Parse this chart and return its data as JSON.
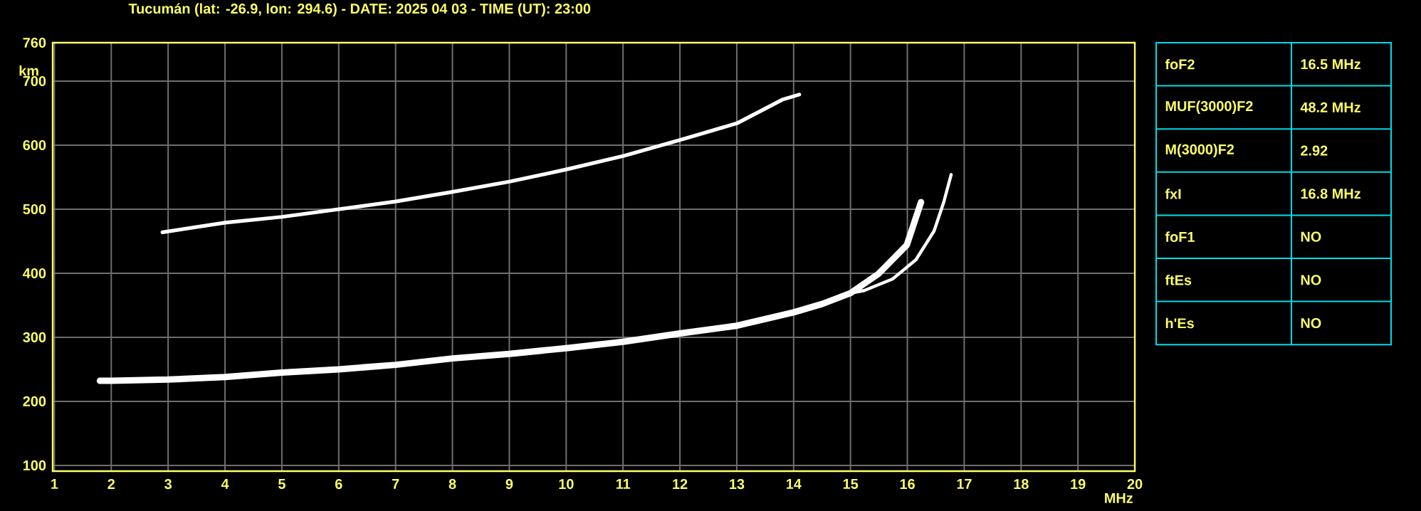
{
  "chart_data": {
    "type": "line",
    "title": "Tucumán (lat: -26.9, lon: 294.6) - DATE: 2025 04 03 - TIME (UT): 23:00",
    "xlabel": "MHz",
    "ylabel": "km",
    "xlim": [
      0.97,
      20
    ],
    "ylim": [
      91,
      760
    ],
    "xticks": [
      1,
      2,
      3,
      4,
      5,
      6,
      7,
      8,
      9,
      10,
      11,
      12,
      13,
      14,
      15,
      16,
      17,
      18,
      19,
      20
    ],
    "yticks": [
      100,
      200,
      300,
      400,
      500,
      600,
      700,
      760
    ],
    "grid": true,
    "marker": "none",
    "line_style": "solid",
    "series": [
      {
        "color": "#ffffff",
        "x": [
          1.8,
          2,
          3,
          4,
          5,
          6,
          7,
          8,
          9,
          10,
          11,
          12,
          13,
          14,
          14.5,
          15,
          15.49,
          15.99,
          16.24
        ],
        "values": [
          232,
          232,
          234,
          238,
          245,
          250,
          257,
          267,
          274,
          283,
          293,
          306,
          318,
          339,
          352,
          369,
          399,
          444,
          511
        ]
      },
      {
        "color": "#ffffff",
        "x": [
          15.0,
          15.24,
          15.74,
          16.15,
          16.47,
          16.64,
          16.77
        ],
        "values": [
          369,
          373,
          391,
          421,
          466,
          511,
          554
        ]
      },
      {
        "color": "#ffffff",
        "x": [
          2.9,
          4,
          5,
          6,
          7,
          8,
          9,
          10,
          11,
          12,
          13,
          13.8,
          14.1
        ],
        "values": [
          464,
          479,
          488,
          500,
          512,
          527,
          543,
          562,
          583,
          608,
          634,
          671,
          679
        ]
      }
    ],
    "annotations": [
      "foF2",
      "16.5 MHz",
      "MUF(3000)F2",
      "48.2 MHz",
      "M(3000)F2",
      "2.92",
      "fxI",
      "16.8 MHz",
      "foF1",
      "NO",
      "ftEs",
      "NO",
      "h'Es",
      "NO"
    ]
  }
}
